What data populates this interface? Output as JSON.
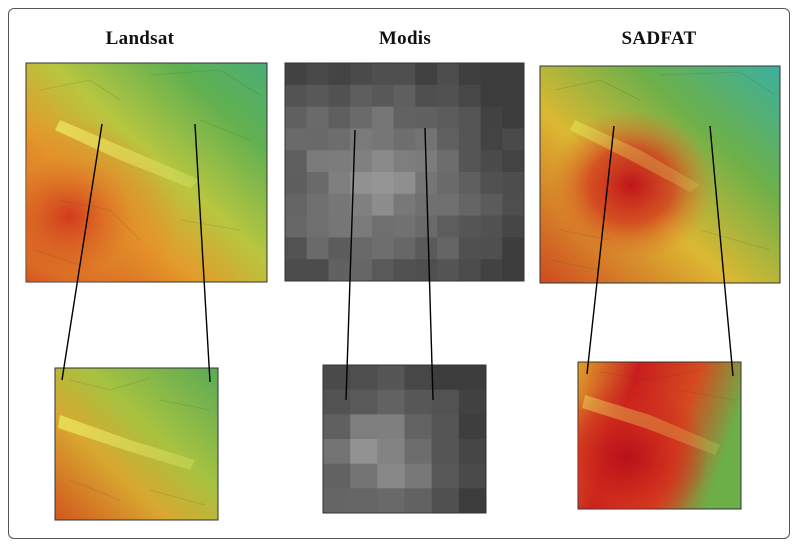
{
  "figure": {
    "panels": [
      {
        "id": "landsat",
        "title": "Landsat",
        "palette": "color-ramp",
        "hotspot": "west"
      },
      {
        "id": "modis",
        "title": "Modis",
        "palette": "grayscale",
        "hotspot": "center"
      },
      {
        "id": "sadfat",
        "title": "SADFAT",
        "palette": "color-ramp",
        "hotspot": "center-west"
      }
    ],
    "colors": {
      "hot": "#c81e1e",
      "warm": "#e8a020",
      "mid": "#d8d040",
      "cool": "#6cb048",
      "cold": "#3cb09c",
      "gray_light": "#9a9a9a",
      "gray_dark": "#4e4e4e",
      "frame": "#555555",
      "connector": "#000000"
    }
  }
}
